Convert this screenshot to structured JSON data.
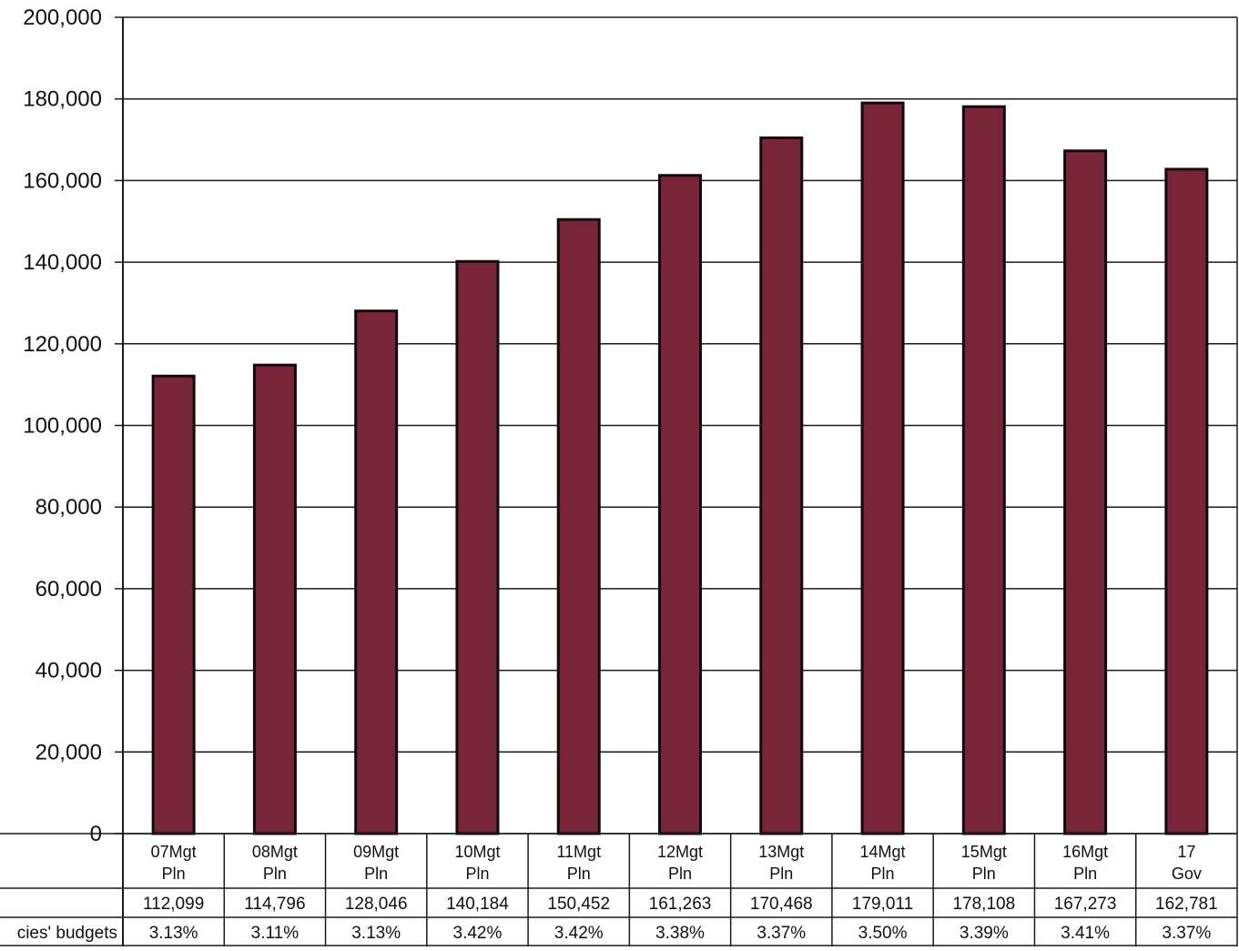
{
  "chart_data": {
    "type": "bar",
    "categories": [
      [
        "07Mgt",
        "Pln"
      ],
      [
        "08Mgt",
        "Pln"
      ],
      [
        "09Mgt",
        "Pln"
      ],
      [
        "10Mgt",
        "Pln"
      ],
      [
        "11Mgt",
        "Pln"
      ],
      [
        "12Mgt",
        "Pln"
      ],
      [
        "13Mgt",
        "Pln"
      ],
      [
        "14Mgt",
        "Pln"
      ],
      [
        "15Mgt",
        "Pln"
      ],
      [
        "16Mgt",
        "Pln"
      ],
      [
        "17",
        "Gov"
      ]
    ],
    "values": [
      112099,
      114796,
      128046,
      140184,
      150452,
      161263,
      170468,
      179011,
      178108,
      167273,
      162781
    ],
    "ylim": [
      0,
      200000
    ],
    "yticks": [
      0,
      20000,
      40000,
      60000,
      80000,
      100000,
      120000,
      140000,
      160000,
      180000,
      200000
    ],
    "ytick_labels": [
      "0",
      "20,000",
      "40,000",
      "60,000",
      "80,000",
      "100,000",
      "120,000",
      "140,000",
      "160,000",
      "180,000",
      "200,000"
    ],
    "grid": true,
    "bar_color": "#7a2438",
    "table": {
      "rows": [
        {
          "label": "",
          "cells": [
            "112,099",
            "114,796",
            "128,046",
            "140,184",
            "150,452",
            "161,263",
            "170,468",
            "179,011",
            "178,108",
            "167,273",
            "162,781"
          ]
        },
        {
          "label": "cies' budgets",
          "cells": [
            "3.13%",
            "3.11%",
            "3.13%",
            "3.42%",
            "3.42%",
            "3.38%",
            "3.37%",
            "3.50%",
            "3.39%",
            "3.41%",
            "3.37%"
          ]
        }
      ]
    }
  }
}
